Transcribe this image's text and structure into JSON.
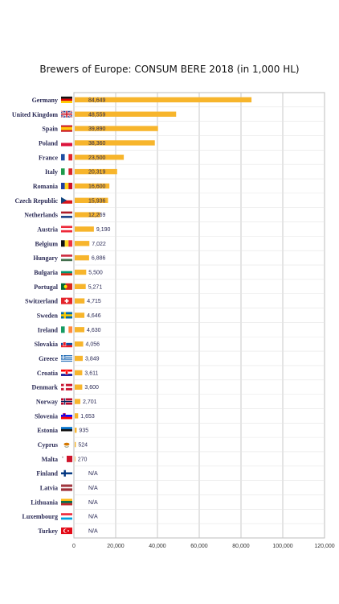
{
  "title": "Brewers of Europe: CONSUM BERE 2018 (in 1,000 HL)",
  "chart_data": {
    "type": "bar",
    "orientation": "horizontal",
    "title": "Brewers of Europe: CONSUM BERE 2018 (in 1,000 HL)",
    "xlabel": "",
    "ylabel": "",
    "xlim": [
      0,
      120000
    ],
    "x_ticks": [
      0,
      20000,
      40000,
      60000,
      80000,
      100000,
      120000
    ],
    "x_tick_labels": [
      "0",
      "20,000",
      "40,000",
      "60,000",
      "80,000",
      "100,000",
      "120,000"
    ],
    "grid": "vertical",
    "bar_color": "#f7b52c",
    "categories": [
      "Germany",
      "United Kingdom",
      "Spain",
      "Poland",
      "France",
      "Italy",
      "Romania",
      "Czech Republic",
      "Netherlands",
      "Austria",
      "Belgium",
      "Hungary",
      "Bulgaria",
      "Portugal",
      "Switzerland",
      "Sweden",
      "Ireland",
      "Slovakia",
      "Greece",
      "Croatia",
      "Denmark",
      "Norway",
      "Slovenia",
      "Estonia",
      "Cyprus",
      "Malta",
      "Finland",
      "Latvia",
      "Lithuania",
      "Luxembourg",
      "Turkey"
    ],
    "values": [
      84649,
      48559,
      39890,
      38360,
      23500,
      20319,
      16600,
      15936,
      12269,
      9190,
      7022,
      6886,
      5500,
      5271,
      4715,
      4646,
      4630,
      4056,
      3849,
      3611,
      3600,
      2701,
      1653,
      935,
      524,
      270,
      null,
      null,
      null,
      null,
      null
    ],
    "value_labels": [
      "84,649",
      "48,559",
      "39,890",
      "38,360",
      "23,500",
      "20,319",
      "16,600",
      "15,936",
      "12,269",
      "9,190",
      "7,022",
      "6,886",
      "5,500",
      "5,271",
      "4,715",
      "4,646",
      "4,630",
      "4,056",
      "3,849",
      "3,611",
      "3,600",
      "2,701",
      "1,653",
      "935",
      "524",
      "270",
      "N/A",
      "N/A",
      "N/A",
      "N/A",
      "N/A"
    ],
    "flags": [
      "flag-germany",
      "flag-united-kingdom",
      "flag-spain",
      "flag-poland",
      "flag-france",
      "flag-italy",
      "flag-romania",
      "flag-czech-republic",
      "flag-netherlands",
      "flag-austria",
      "flag-belgium",
      "flag-hungary",
      "flag-bulgaria",
      "flag-portugal",
      "flag-switzerland",
      "flag-sweden",
      "flag-ireland",
      "flag-slovakia",
      "flag-greece",
      "flag-croatia",
      "flag-denmark",
      "flag-norway",
      "flag-slovenia",
      "flag-estonia",
      "flag-cyprus",
      "flag-malta",
      "flag-finland",
      "flag-latvia",
      "flag-lithuania",
      "flag-luxembourg",
      "flag-turkey"
    ]
  }
}
